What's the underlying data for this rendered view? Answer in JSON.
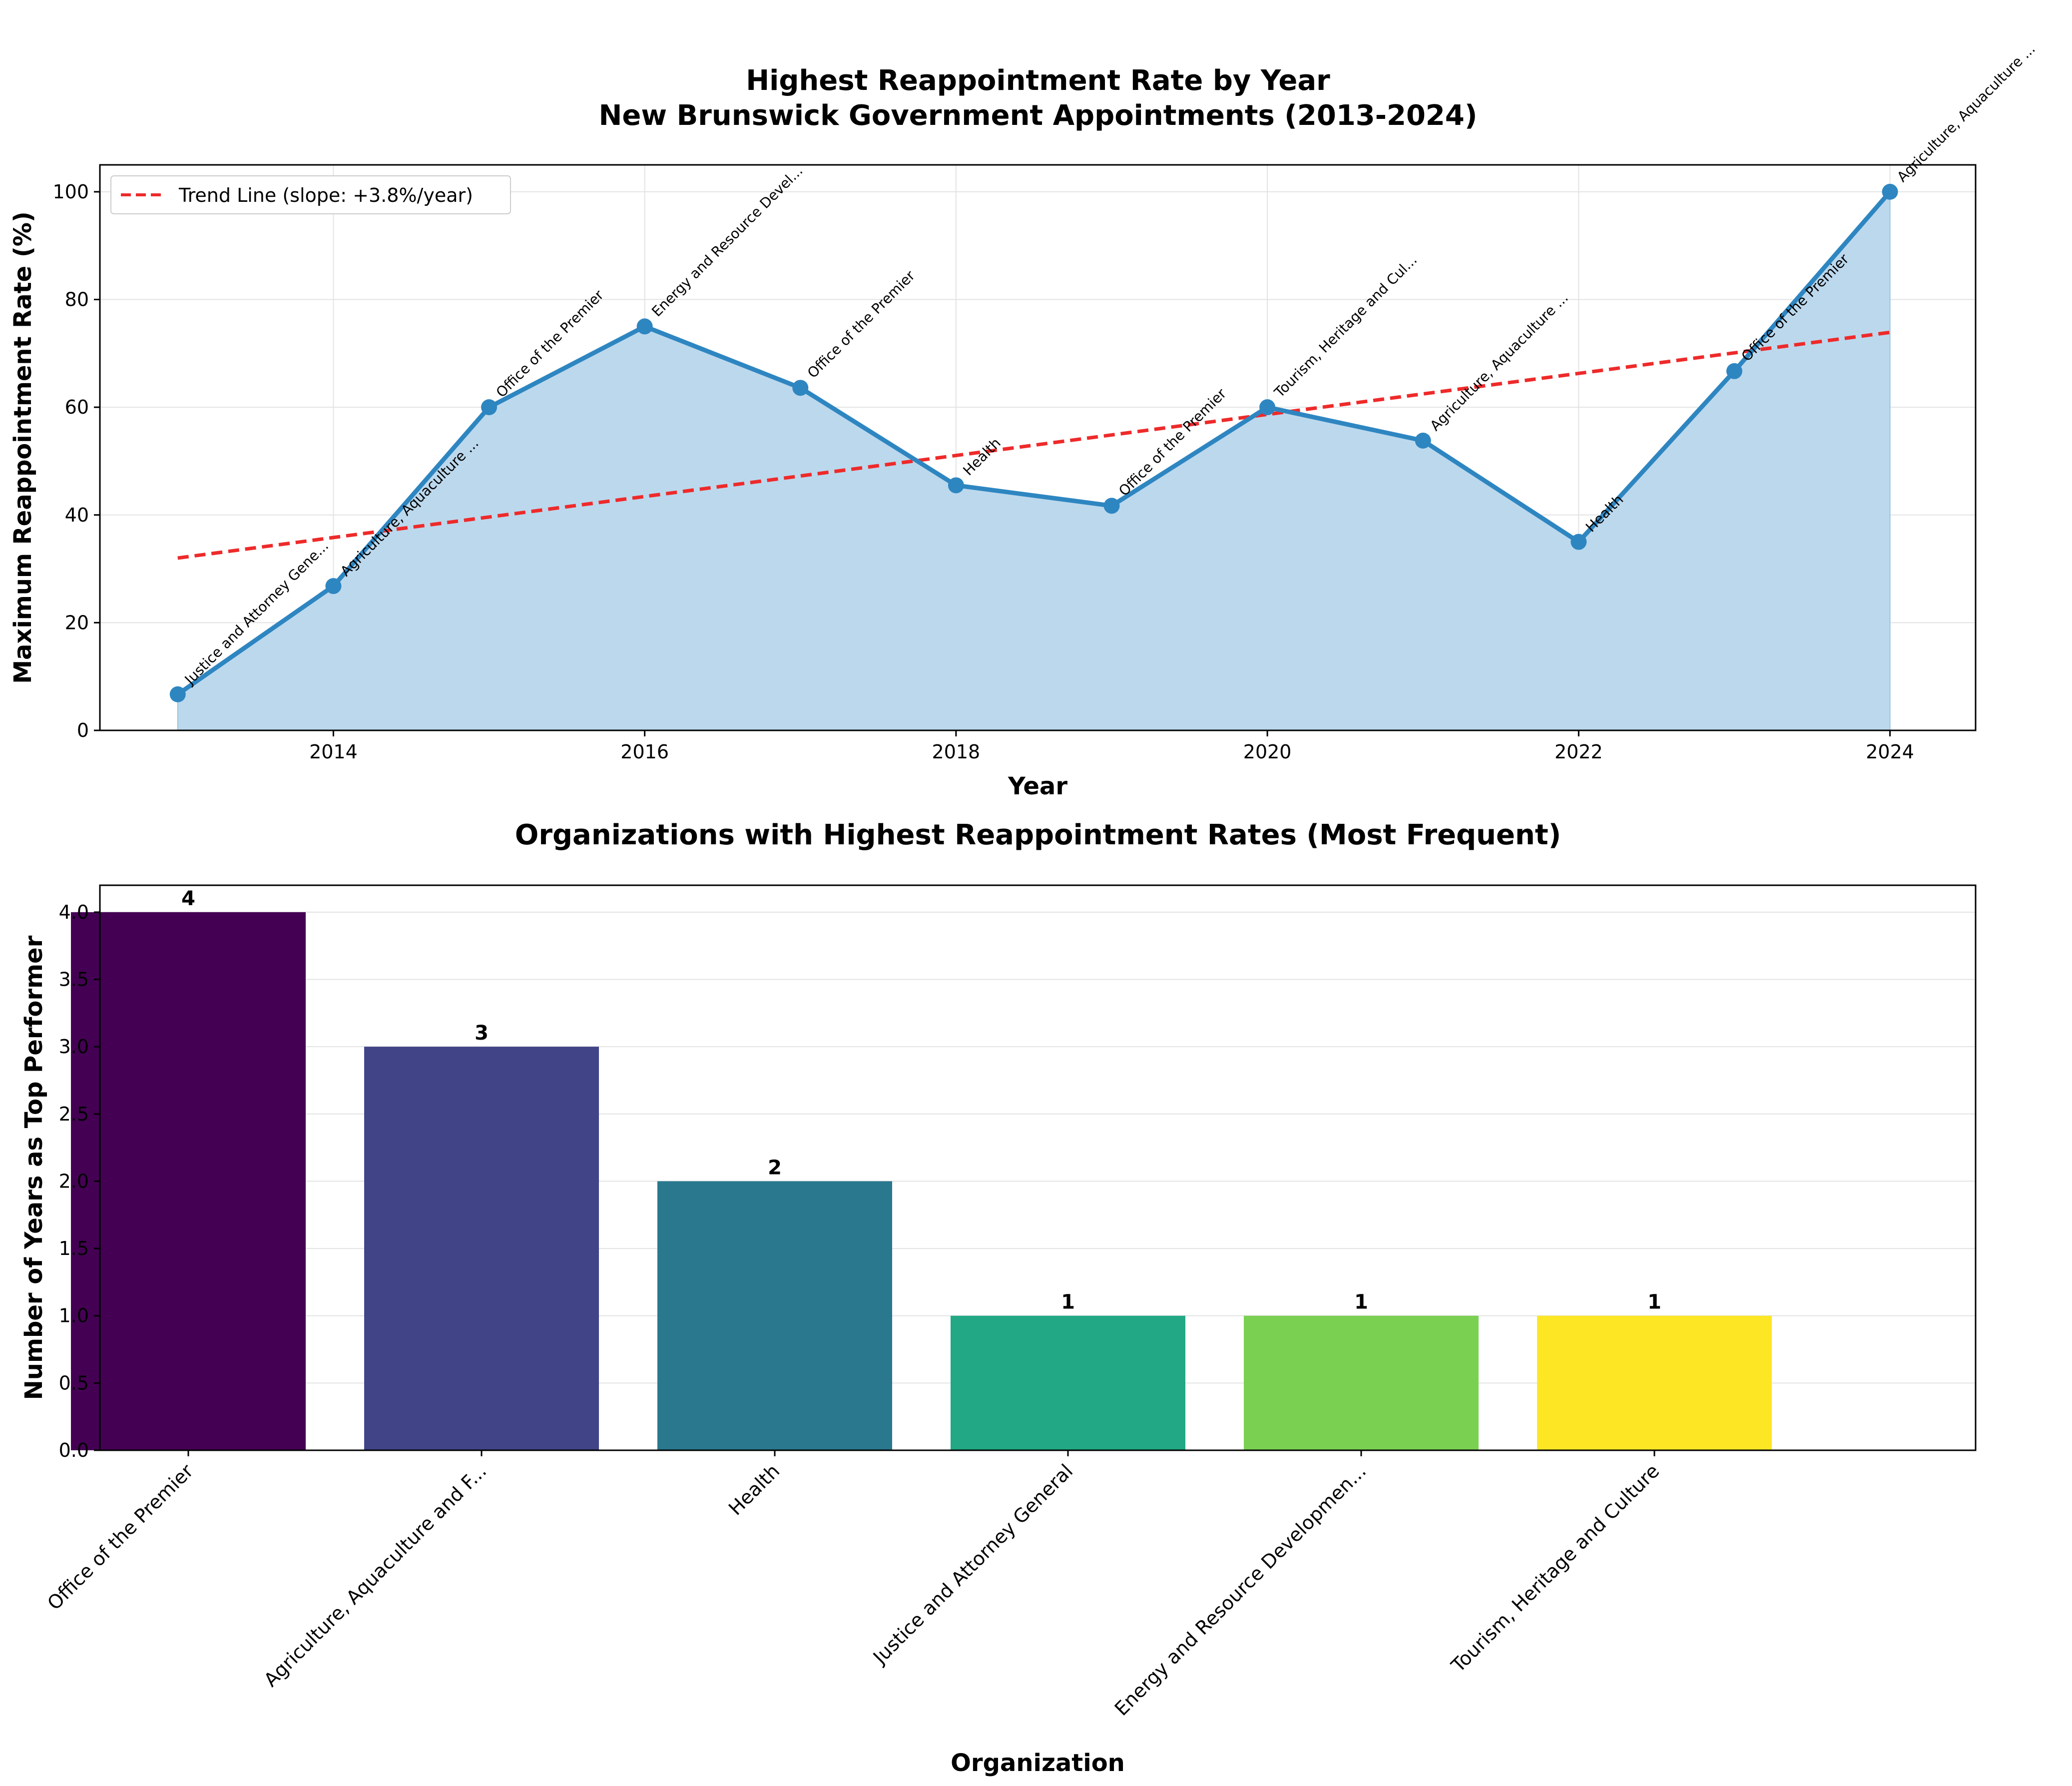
{
  "chart_data": [
    {
      "type": "area",
      "title": "Highest Reappointment Rate by Year\nNew Brunswick Government Appointments (2013-2024)",
      "xlabel": "Year",
      "ylabel": "Maximum Reappointment Rate (%)",
      "xlim": [
        2012.5,
        2024.55
      ],
      "ylim": [
        0,
        105
      ],
      "x_ticks": [
        2014,
        2016,
        2018,
        2020,
        2022,
        2024
      ],
      "y_ticks": [
        0,
        20,
        40,
        60,
        80,
        100
      ],
      "grid": true,
      "legend_position": "top-left",
      "x": [
        2013,
        2014,
        2015,
        2016,
        2017,
        2018,
        2019,
        2020,
        2021,
        2022,
        2023,
        2024
      ],
      "series": [
        {
          "values": [
            6.7,
            26.8,
            60.0,
            75.0,
            63.6,
            45.5,
            41.7,
            60.0,
            53.8,
            35.0,
            66.7,
            100.0
          ],
          "color": "#2e86c1",
          "fill": "#bcd8ed"
        }
      ],
      "trend_line": {
        "name": "Trend Line (slope: +3.8%/year)",
        "color": "#ee2a2a",
        "start": [
          2013,
          32.0
        ],
        "end": [
          2024,
          73.9
        ]
      },
      "annotations": [
        "Justice and Attorney Gene...",
        "Agriculture, Aquaculture ...",
        "Office of the Premier",
        "Energy and Resource Devel...",
        "Office of the Premier",
        "Health",
        "Office of the Premier",
        "Tourism, Heritage and Cul...",
        "Agriculture, Aquaculture ...",
        "Health",
        "Office of the Premier",
        "Agriculture, Aquaculture ..."
      ]
    },
    {
      "type": "bar",
      "title": "Organizations with Highest Reappointment Rates (Most Frequent)",
      "xlabel": "Organization",
      "ylabel": "Number of Years as Top Performer",
      "ylim": [
        0,
        4.2
      ],
      "y_ticks": [
        "0.0",
        "0.5",
        "1.0",
        "1.5",
        "2.0",
        "2.5",
        "3.0",
        "3.5",
        "4.0"
      ],
      "grid": true,
      "categories": [
        "Office of the Premier",
        "Agriculture, Aquaculture and F...",
        "Health",
        "Justice and Attorney General",
        "Energy and Resource Developmen...",
        "Tourism, Heritage and Culture"
      ],
      "values": [
        4,
        3,
        2,
        1,
        1,
        1
      ],
      "colors": [
        "#440154",
        "#414487",
        "#2a788e",
        "#22a884",
        "#7ad151",
        "#fde725"
      ]
    }
  ]
}
